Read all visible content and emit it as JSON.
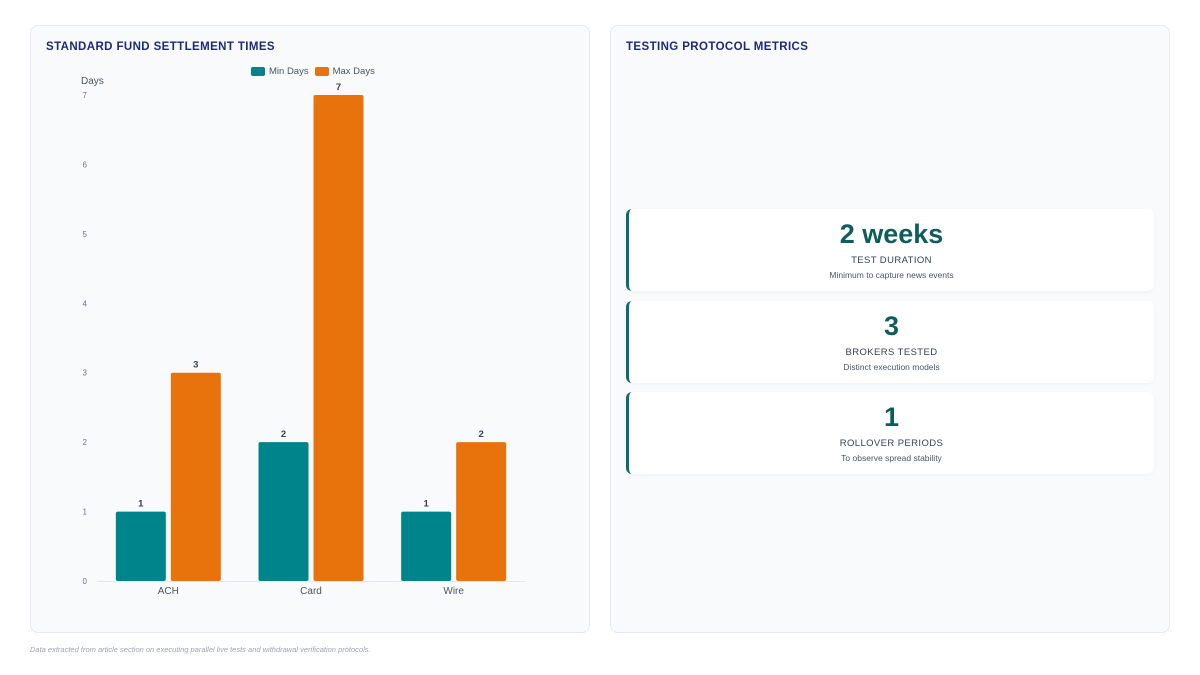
{
  "left_panel": {
    "title": "STANDARD FUND SETTLEMENT TIMES"
  },
  "right_panel": {
    "title": "TESTING PROTOCOL METRICS"
  },
  "chart_data": {
    "type": "bar",
    "title": "STANDARD FUND SETTLEMENT TIMES",
    "xlabel": "",
    "ylabel": "Days",
    "categories": [
      "ACH",
      "Card",
      "Wire"
    ],
    "series": [
      {
        "name": "Min Days",
        "values": [
          1,
          2,
          1
        ],
        "color": "#00848b"
      },
      {
        "name": "Max Days",
        "values": [
          3,
          7,
          2
        ],
        "color": "#e8730c"
      }
    ],
    "ylim": [
      0,
      7
    ],
    "yticks": [
      0,
      1,
      2,
      3,
      4,
      5,
      6,
      7
    ],
    "grid": false,
    "legend": "top-center",
    "data_labels": true
  },
  "metrics": [
    {
      "value": "2 weeks",
      "label": "TEST DURATION",
      "sub": "Minimum to capture news events"
    },
    {
      "value": "3",
      "label": "BROKERS TESTED",
      "sub": "Distinct execution models"
    },
    {
      "value": "1",
      "label": "ROLLOVER PERIODS",
      "sub": "To observe spread stability"
    }
  ],
  "colors": {
    "accent": "#0f5c5c",
    "title": "#1e2a78"
  },
  "footer": "Data extracted from article section on executing parallel live tests and withdrawal verification protocols."
}
